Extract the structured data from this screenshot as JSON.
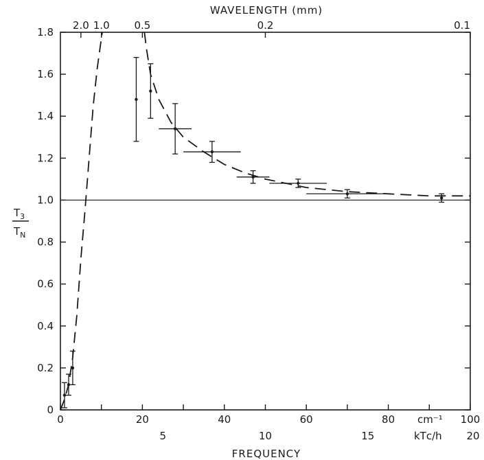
{
  "chart_data": {
    "type": "scatter",
    "title": "",
    "xlabel": "FREQUENCY",
    "xunit": "cm⁻¹",
    "top_axis_label": "WAVELENGTH  (mm)",
    "ylabel_num": "T",
    "ylabel_num_sub": "3",
    "ylabel_den": "T",
    "ylabel_den_sub": "N",
    "xlim": [
      0,
      100
    ],
    "ylim": [
      0,
      1.8
    ],
    "x_ticks": [
      0,
      10,
      20,
      30,
      40,
      50,
      60,
      70,
      80,
      90,
      100
    ],
    "x_tick_labels": [
      {
        "x": 0,
        "text": "0"
      },
      {
        "x": 20,
        "text": "20"
      },
      {
        "x": 40,
        "text": "40"
      },
      {
        "x": 60,
        "text": "60"
      },
      {
        "x": 80,
        "text": "80"
      },
      {
        "x": 100,
        "text": "100"
      }
    ],
    "y_ticks": [
      0,
      0.2,
      0.4,
      0.6,
      0.8,
      1.0,
      1.2,
      1.4,
      1.6,
      1.8
    ],
    "y_tick_labels": [
      "0",
      "0.2",
      "0.4",
      "0.6",
      "0.8",
      "1.0",
      "1.2",
      "1.4",
      "1.6",
      "1.8"
    ],
    "top_ticks": [
      {
        "x": 5,
        "text": "2.0"
      },
      {
        "x": 10,
        "text": "1.0"
      },
      {
        "x": 20,
        "text": "0.5"
      },
      {
        "x": 50,
        "text": "0.2"
      },
      {
        "x": 100,
        "text": "0.1"
      }
    ],
    "secondary_x_axis": {
      "label": "kTᴄ/h",
      "ticks": [
        {
          "x": 25,
          "text": "5"
        },
        {
          "x": 50,
          "text": "10"
        },
        {
          "x": 75,
          "text": "15"
        },
        {
          "x": 100,
          "text": "20"
        }
      ]
    },
    "reference_line_y": 1.0,
    "points": [
      {
        "x": 1,
        "y": 0.07,
        "yerr": 0.06,
        "xerr": 0
      },
      {
        "x": 2,
        "y": 0.12,
        "yerr": 0.05,
        "xerr": 0
      },
      {
        "x": 3,
        "y": 0.2,
        "yerr": 0.08,
        "xerr": 0
      },
      {
        "x": 18.5,
        "y": 1.48,
        "yerr": 0.2,
        "xerr": 0
      },
      {
        "x": 22,
        "y": 1.52,
        "yerr": 0.13,
        "xerr": 0
      },
      {
        "x": 28,
        "y": 1.34,
        "yerr": 0.12,
        "xerr": 4
      },
      {
        "x": 37,
        "y": 1.23,
        "yerr": 0.05,
        "xerr": 7
      },
      {
        "x": 47,
        "y": 1.11,
        "yerr": 0.03,
        "xerr": 4
      },
      {
        "x": 58,
        "y": 1.08,
        "yerr": 0.02,
        "xerr": 7
      },
      {
        "x": 70,
        "y": 1.03,
        "yerr": 0.02,
        "xerr": 10
      },
      {
        "x": 93,
        "y": 1.01,
        "yerr": 0.02,
        "xerr": 0
      }
    ],
    "curves": [
      {
        "style": "dashed",
        "x": [
          0,
          1,
          2,
          3,
          4,
          5,
          6,
          7,
          8,
          9,
          10.2
        ],
        "y": [
          0,
          0.05,
          0.12,
          0.25,
          0.45,
          0.72,
          0.95,
          1.2,
          1.45,
          1.63,
          1.8
        ]
      },
      {
        "style": "dashed",
        "x": [
          20.5,
          21,
          22,
          24,
          27,
          30,
          35,
          40,
          45,
          50,
          55,
          60,
          70,
          80,
          90,
          100
        ],
        "y": [
          1.8,
          1.72,
          1.6,
          1.48,
          1.37,
          1.3,
          1.23,
          1.17,
          1.13,
          1.1,
          1.08,
          1.06,
          1.04,
          1.03,
          1.02,
          1.02
        ]
      }
    ]
  }
}
